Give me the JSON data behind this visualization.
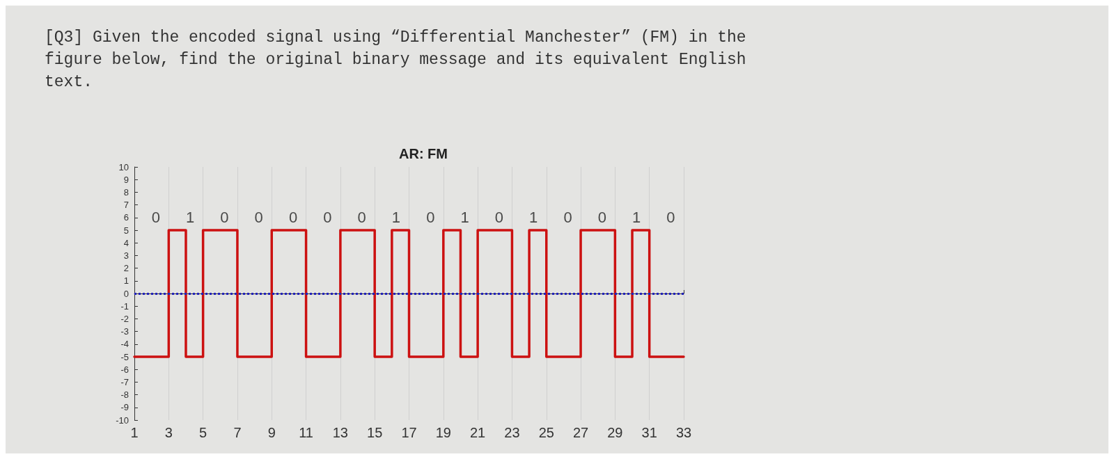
{
  "chart_data": {
    "type": "step",
    "title": "AR: FM",
    "annotations": [
      "[Q3] Given the encoded signal using “Differential Manchester” (FM) in the figure below, find the original binary message and its equivalent English text.",
      "0",
      "1",
      "0",
      "0",
      "0",
      "0",
      "0",
      "1",
      "0",
      "1",
      "0",
      "1",
      "0",
      "0",
      "1",
      "0"
    ],
    "series": [
      {
        "color": "#cc1111",
        "x": [
          1,
          3,
          4,
          5,
          7,
          9,
          11,
          13,
          15,
          16,
          17,
          19,
          20,
          21,
          23,
          24,
          25,
          27,
          29,
          30,
          31,
          33
        ],
        "values": [
          -5,
          5,
          -5,
          5,
          -5,
          5,
          -5,
          5,
          -5,
          5,
          -5,
          5,
          -5,
          5,
          -5,
          5,
          -5,
          5,
          -5,
          5,
          -5,
          -5
        ]
      }
    ],
    "ref_lines": [
      {
        "axis": "y",
        "value": 0,
        "color": "#2222bb",
        "line_style": "dotted"
      }
    ],
    "xlim": [
      1,
      33
    ],
    "xticks": [
      1,
      3,
      5,
      7,
      9,
      11,
      13,
      15,
      17,
      19,
      21,
      23,
      25,
      27,
      29,
      31,
      33
    ],
    "ylim": [
      -10,
      10
    ],
    "yticks": [
      -10,
      -9,
      -8,
      -7,
      -6,
      -5,
      -4,
      -3,
      -2,
      -1,
      0,
      1,
      2,
      3,
      4,
      5,
      6,
      7,
      8,
      9,
      10
    ],
    "grid": "x",
    "marker": "none",
    "line_style": "solid"
  }
}
